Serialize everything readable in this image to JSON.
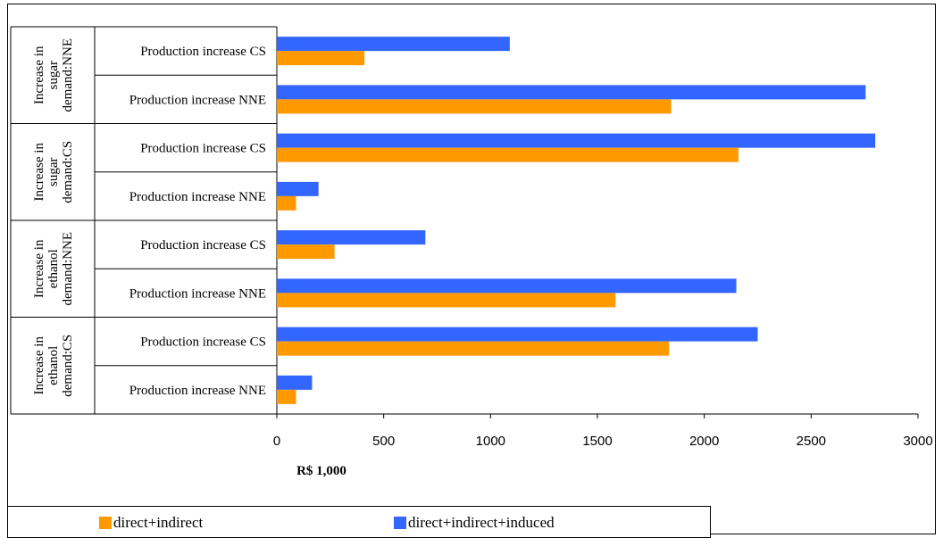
{
  "chart_data": {
    "type": "bar",
    "orientation": "horizontal",
    "xlabel": "R$ 1,000",
    "xlim": [
      0,
      3000
    ],
    "xticks": [
      "0",
      "500",
      "1000",
      "1500",
      "2000",
      "2500",
      "3000"
    ],
    "groups": [
      {
        "label": "Increase in sugar demand:NNE",
        "categories": [
          "Production increase CS",
          "Production increase NNE"
        ],
        "direct_indirect": [
          410,
          1845
        ],
        "direct_indirect_induced": [
          1090,
          2755
        ]
      },
      {
        "label": "Increase in sugar demand:CS",
        "categories": [
          "Production increase CS",
          "Production increase NNE"
        ],
        "direct_indirect": [
          2160,
          90
        ],
        "direct_indirect_induced": [
          2800,
          195
        ]
      },
      {
        "label": "Increase in ethanol demand:NNE",
        "categories": [
          "Production increase CS",
          "Production increase NNE"
        ],
        "direct_indirect": [
          270,
          1585
        ],
        "direct_indirect_induced": [
          695,
          2150
        ]
      },
      {
        "label": "Increase in ethanol demand:CS",
        "categories": [
          "Production increase CS",
          "Production increase NNE"
        ],
        "direct_indirect": [
          1835,
          90
        ],
        "direct_indirect_induced": [
          2250,
          165
        ]
      }
    ],
    "series": [
      {
        "name": "direct+indirect",
        "key": "direct_indirect",
        "color": "#FF9900"
      },
      {
        "name": "direct+indirect+induced",
        "key": "direct_indirect_induced",
        "color": "#3366FF"
      }
    ],
    "grid": false,
    "legend_position": "bottom"
  },
  "legend": {
    "item1": "direct+indirect",
    "item2": "direct+indirect+induced"
  }
}
